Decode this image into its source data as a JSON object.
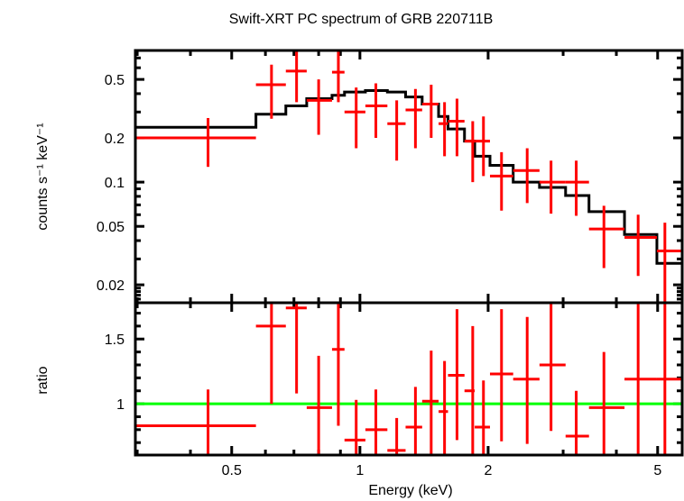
{
  "chart_data": [
    {
      "type": "line",
      "panel": "spectrum",
      "title": "Swift-XRT PC spectrum of GRB 220711B",
      "xlabel": "Energy (keV)",
      "ylabel": "counts s⁻¹ keV⁻¹",
      "xscale": "log",
      "yscale": "log",
      "xlim": [
        0.297,
        5.71
      ],
      "ylim": [
        0.0151,
        0.787
      ],
      "yticks": [
        0.02,
        0.05,
        0.1,
        0.2,
        0.5
      ],
      "ytick_labels": [
        "0.02",
        "0.05",
        "0.1",
        "0.2",
        "0.5"
      ],
      "grid": false,
      "data_color": "#ff0000",
      "model_color": "#000000",
      "series": [
        {
          "name": "data",
          "points": [
            {
              "e_lo": 0.297,
              "e_hi": 0.57,
              "e": 0.44,
              "y": 0.2,
              "y_lo": 0.127,
              "y_hi": 0.273
            },
            {
              "e_lo": 0.57,
              "e_hi": 0.67,
              "e": 0.62,
              "y": 0.46,
              "y_lo": 0.27,
              "y_hi": 0.63
            },
            {
              "e_lo": 0.67,
              "e_hi": 0.75,
              "e": 0.71,
              "y": 0.57,
              "y_lo": 0.35,
              "y_hi": 0.79
            },
            {
              "e_lo": 0.75,
              "e_hi": 0.86,
              "e": 0.8,
              "y": 0.36,
              "y_lo": 0.21,
              "y_hi": 0.5
            },
            {
              "e_lo": 0.86,
              "e_hi": 0.92,
              "e": 0.89,
              "y": 0.56,
              "y_lo": 0.35,
              "y_hi": 0.79
            },
            {
              "e_lo": 0.92,
              "e_hi": 1.03,
              "e": 0.98,
              "y": 0.3,
              "y_lo": 0.17,
              "y_hi": 0.44
            },
            {
              "e_lo": 1.03,
              "e_hi": 1.16,
              "e": 1.09,
              "y": 0.33,
              "y_lo": 0.2,
              "y_hi": 0.47
            },
            {
              "e_lo": 1.16,
              "e_hi": 1.28,
              "e": 1.22,
              "y": 0.25,
              "y_lo": 0.14,
              "y_hi": 0.36
            },
            {
              "e_lo": 1.28,
              "e_hi": 1.4,
              "e": 1.35,
              "y": 0.31,
              "y_lo": 0.17,
              "y_hi": 0.43
            },
            {
              "e_lo": 1.4,
              "e_hi": 1.53,
              "e": 1.47,
              "y": 0.34,
              "y_lo": 0.2,
              "y_hi": 0.46
            },
            {
              "e_lo": 1.53,
              "e_hi": 1.61,
              "e": 1.58,
              "y": 0.25,
              "y_lo": 0.15,
              "y_hi": 0.35
            },
            {
              "e_lo": 1.61,
              "e_hi": 1.76,
              "e": 1.69,
              "y": 0.26,
              "y_lo": 0.15,
              "y_hi": 0.37
            },
            {
              "e_lo": 1.76,
              "e_hi": 1.86,
              "e": 1.84,
              "y": 0.19,
              "y_lo": 0.1,
              "y_hi": 0.26
            },
            {
              "e_lo": 1.86,
              "e_hi": 2.02,
              "e": 1.95,
              "y": 0.19,
              "y_lo": 0.11,
              "y_hi": 0.28
            },
            {
              "e_lo": 2.02,
              "e_hi": 2.29,
              "e": 2.15,
              "y": 0.11,
              "y_lo": 0.064,
              "y_hi": 0.16
            },
            {
              "e_lo": 2.29,
              "e_hi": 2.64,
              "e": 2.47,
              "y": 0.12,
              "y_lo": 0.072,
              "y_hi": 0.17
            },
            {
              "e_lo": 2.64,
              "e_hi": 3.04,
              "e": 2.81,
              "y": 0.1,
              "y_lo": 0.061,
              "y_hi": 0.14
            },
            {
              "e_lo": 3.04,
              "e_hi": 3.45,
              "e": 3.22,
              "y": 0.1,
              "y_lo": 0.059,
              "y_hi": 0.14
            },
            {
              "e_lo": 3.45,
              "e_hi": 4.18,
              "e": 3.74,
              "y": 0.048,
              "y_lo": 0.026,
              "y_hi": 0.069
            },
            {
              "e_lo": 4.18,
              "e_hi": 4.98,
              "e": 4.5,
              "y": 0.042,
              "y_lo": 0.023,
              "y_hi": 0.06
            },
            {
              "e_lo": 4.98,
              "e_hi": 5.71,
              "e": 5.2,
              "y": 0.034,
              "y_lo": 0.0151,
              "y_hi": 0.053
            }
          ]
        },
        {
          "name": "model",
          "steps": [
            {
              "e_lo": 0.297,
              "e_hi": 0.57,
              "y": 0.236
            },
            {
              "e_lo": 0.57,
              "e_hi": 0.67,
              "y": 0.29
            },
            {
              "e_lo": 0.67,
              "e_hi": 0.75,
              "y": 0.33
            },
            {
              "e_lo": 0.75,
              "e_hi": 0.86,
              "y": 0.37
            },
            {
              "e_lo": 0.86,
              "e_hi": 0.92,
              "y": 0.39
            },
            {
              "e_lo": 0.92,
              "e_hi": 1.03,
              "y": 0.41
            },
            {
              "e_lo": 1.03,
              "e_hi": 1.16,
              "y": 0.42
            },
            {
              "e_lo": 1.16,
              "e_hi": 1.28,
              "y": 0.41
            },
            {
              "e_lo": 1.28,
              "e_hi": 1.4,
              "y": 0.38
            },
            {
              "e_lo": 1.4,
              "e_hi": 1.53,
              "y": 0.34
            },
            {
              "e_lo": 1.53,
              "e_hi": 1.61,
              "y": 0.28
            },
            {
              "e_lo": 1.61,
              "e_hi": 1.76,
              "y": 0.23
            },
            {
              "e_lo": 1.76,
              "e_hi": 1.86,
              "y": 0.19
            },
            {
              "e_lo": 1.86,
              "e_hi": 2.02,
              "y": 0.15
            },
            {
              "e_lo": 2.02,
              "e_hi": 2.29,
              "y": 0.13
            },
            {
              "e_lo": 2.29,
              "e_hi": 2.64,
              "y": 0.1
            },
            {
              "e_lo": 2.64,
              "e_hi": 3.04,
              "y": 0.092
            },
            {
              "e_lo": 3.04,
              "e_hi": 3.45,
              "y": 0.081
            },
            {
              "e_lo": 3.45,
              "e_hi": 4.18,
              "y": 0.063
            },
            {
              "e_lo": 4.18,
              "e_hi": 4.98,
              "y": 0.044
            },
            {
              "e_lo": 4.98,
              "e_hi": 5.71,
              "y": 0.028
            }
          ]
        }
      ]
    },
    {
      "type": "scatter",
      "panel": "ratio",
      "xlabel": "Energy (keV)",
      "ylabel": "ratio",
      "xscale": "log",
      "yscale": "linear",
      "xlim": [
        0.297,
        5.71
      ],
      "ylim": [
        0.604,
        1.78
      ],
      "xticks": [
        0.5,
        1,
        2,
        5
      ],
      "xtick_labels": [
        "0.5",
        "1",
        "2",
        "5"
      ],
      "yticks": [
        1,
        1.5
      ],
      "ytick_labels": [
        "1",
        "1.5"
      ],
      "reference_line": {
        "y": 1,
        "color": "#00ff00"
      },
      "data_color": "#ff0000",
      "series": [
        {
          "name": "ratio",
          "points": [
            {
              "e_lo": 0.297,
              "e_hi": 0.57,
              "e": 0.44,
              "y": 0.83,
              "y_lo": 0.6,
              "y_hi": 1.11
            },
            {
              "e_lo": 0.57,
              "e_hi": 0.67,
              "e": 0.62,
              "y": 1.6,
              "y_lo": 1.0,
              "y_hi": 1.78
            },
            {
              "e_lo": 0.67,
              "e_hi": 0.75,
              "e": 0.71,
              "y": 1.74,
              "y_lo": 1.08,
              "y_hi": 1.78
            },
            {
              "e_lo": 0.75,
              "e_hi": 0.86,
              "e": 0.8,
              "y": 0.97,
              "y_lo": 0.6,
              "y_hi": 1.37
            },
            {
              "e_lo": 0.86,
              "e_hi": 0.92,
              "e": 0.89,
              "y": 1.42,
              "y_lo": 0.83,
              "y_hi": 1.78
            },
            {
              "e_lo": 0.92,
              "e_hi": 1.03,
              "e": 0.98,
              "y": 0.72,
              "y_lo": 0.6,
              "y_hi": 1.03
            },
            {
              "e_lo": 1.03,
              "e_hi": 1.16,
              "e": 1.09,
              "y": 0.8,
              "y_lo": 0.6,
              "y_hi": 1.11
            },
            {
              "e_lo": 1.16,
              "e_hi": 1.28,
              "e": 1.22,
              "y": 0.64,
              "y_lo": 0.6,
              "y_hi": 0.89
            },
            {
              "e_lo": 1.28,
              "e_hi": 1.4,
              "e": 1.35,
              "y": 0.82,
              "y_lo": 0.6,
              "y_hi": 1.13
            },
            {
              "e_lo": 1.4,
              "e_hi": 1.53,
              "e": 1.47,
              "y": 1.02,
              "y_lo": 0.61,
              "y_hi": 1.41
            },
            {
              "e_lo": 1.53,
              "e_hi": 1.61,
              "e": 1.58,
              "y": 0.94,
              "y_lo": 0.6,
              "y_hi": 1.33
            },
            {
              "e_lo": 1.61,
              "e_hi": 1.76,
              "e": 1.69,
              "y": 1.22,
              "y_lo": 0.72,
              "y_hi": 1.73
            },
            {
              "e_lo": 1.76,
              "e_hi": 1.86,
              "e": 1.84,
              "y": 1.1,
              "y_lo": 0.61,
              "y_hi": 1.6
            },
            {
              "e_lo": 1.86,
              "e_hi": 2.02,
              "e": 1.95,
              "y": 0.82,
              "y_lo": 0.6,
              "y_hi": 1.18
            },
            {
              "e_lo": 2.02,
              "e_hi": 2.29,
              "e": 2.15,
              "y": 1.23,
              "y_lo": 0.71,
              "y_hi": 1.73
            },
            {
              "e_lo": 2.29,
              "e_hi": 2.64,
              "e": 2.47,
              "y": 1.19,
              "y_lo": 0.69,
              "y_hi": 1.67
            },
            {
              "e_lo": 2.64,
              "e_hi": 3.04,
              "e": 2.81,
              "y": 1.3,
              "y_lo": 0.79,
              "y_hi": 1.78
            },
            {
              "e_lo": 3.04,
              "e_hi": 3.45,
              "e": 3.22,
              "y": 0.75,
              "y_lo": 0.6,
              "y_hi": 1.1
            },
            {
              "e_lo": 3.45,
              "e_hi": 4.18,
              "e": 3.74,
              "y": 0.97,
              "y_lo": 0.6,
              "y_hi": 1.4
            },
            {
              "e_lo": 4.18,
              "e_hi": 4.98,
              "e": 4.5,
              "y": 1.19,
              "y_lo": 0.6,
              "y_hi": 1.78
            },
            {
              "e_lo": 4.98,
              "e_hi": 5.71,
              "e": 5.2,
              "y": 1.19,
              "y_lo": 0.6,
              "y_hi": 1.78
            }
          ]
        }
      ]
    }
  ]
}
